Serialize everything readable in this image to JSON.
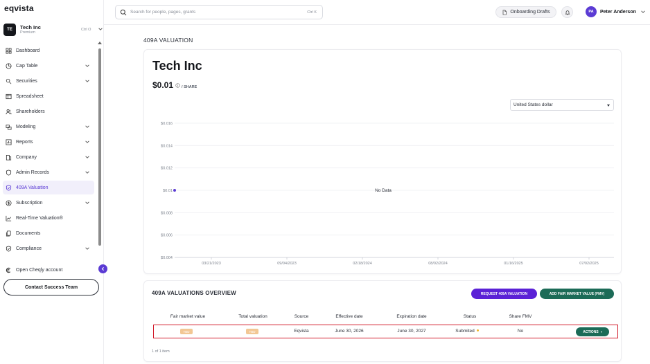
{
  "app": {
    "logo": "eqvista"
  },
  "company": {
    "initials": "TE",
    "name": "Tech Inc",
    "plan": "Premium",
    "shortcut": "Ctrl O"
  },
  "search": {
    "placeholder": "Search for people, pages, grants",
    "shortcut": "Ctrl K"
  },
  "header": {
    "drafts_label": "Onboarding Drafts",
    "user_initials": "PA",
    "user_name": "Peter Anderson"
  },
  "sidebar": {
    "items": [
      {
        "label": "Dashboard",
        "icon": "grid-icon",
        "chevron": false,
        "active": false
      },
      {
        "label": "Cap Table",
        "icon": "pie-icon",
        "chevron": true,
        "active": false
      },
      {
        "label": "Securities",
        "icon": "securities-icon",
        "chevron": true,
        "active": false
      },
      {
        "label": "Spreadsheet",
        "icon": "spreadsheet-icon",
        "chevron": false,
        "active": false
      },
      {
        "label": "Shareholders",
        "icon": "users-icon",
        "chevron": false,
        "active": false
      },
      {
        "label": "Modeling",
        "icon": "modeling-icon",
        "chevron": true,
        "active": false
      },
      {
        "label": "Reports",
        "icon": "reports-icon",
        "chevron": true,
        "active": false
      },
      {
        "label": "Company",
        "icon": "company-icon",
        "chevron": true,
        "active": false
      },
      {
        "label": "Admin Records",
        "icon": "shield-icon",
        "chevron": true,
        "active": false
      },
      {
        "label": "409A Valuation",
        "icon": "shield-check-icon",
        "chevron": false,
        "active": true
      },
      {
        "label": "Subscription",
        "icon": "subscription-icon",
        "chevron": true,
        "active": false
      },
      {
        "label": "Real-Time Valuation®",
        "icon": "trend-icon",
        "chevron": false,
        "active": false
      },
      {
        "label": "Documents",
        "icon": "documents-icon",
        "chevron": false,
        "active": false
      },
      {
        "label": "Compliance",
        "icon": "compliance-icon",
        "chevron": true,
        "active": true
      }
    ],
    "cheqly_label": "Open Cheqly account",
    "contact_label": "Contact Success Team"
  },
  "main": {
    "page_heading": "409A VALUATION",
    "company_title": "Tech Inc",
    "price": "$0.01",
    "per_share": "/ SHARE",
    "currency": "United States dollar"
  },
  "chart_data": {
    "type": "line",
    "y_ticks": [
      "$0.016",
      "$0.014",
      "$0.012",
      "$0.01",
      "$0.008",
      "$0.006",
      "$0.004"
    ],
    "y_values": [
      0.016,
      0.014,
      0.012,
      0.01,
      0.008,
      0.006,
      0.004
    ],
    "x_ticks": [
      "03/21/2023",
      "09/04/2023",
      "02/18/2024",
      "08/02/2024",
      "01/16/2025",
      "07/02/2025"
    ],
    "ylim": [
      0.004,
      0.016
    ],
    "grid": true,
    "no_data_label": "No Data",
    "points": [
      {
        "x": "",
        "y": 0.01
      }
    ],
    "point_color": "#5b3bd4"
  },
  "overview": {
    "title": "409A VALUATIONS OVERVIEW",
    "request_button": "REQUEST 409A VALUATION",
    "fmv_button": "ADD FAIR MARKET VALUE (FMV)",
    "columns": [
      "Fair market value",
      "Total valuation",
      "Source",
      "Effective date",
      "Expiration date",
      "Status",
      "Share FMV"
    ],
    "row": {
      "fair_market_value": "TBD",
      "total_valuation": "TBD",
      "source": "Eqvista",
      "effective_date": "June 30, 2026",
      "expiration_date": "June 30, 2027",
      "status": "Submited",
      "share_fmv": "No",
      "actions_label": "ACTIONS"
    },
    "pagination": "1 of 1 item"
  }
}
